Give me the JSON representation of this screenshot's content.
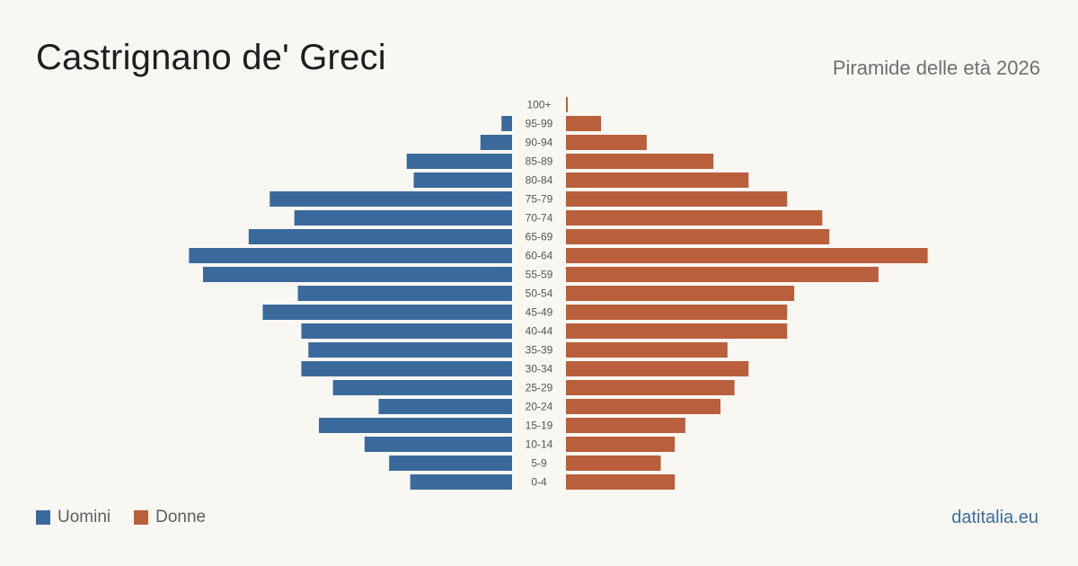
{
  "header": {
    "title": "Castrignano de' Greci",
    "subtitle": "Piramide delle età 2026"
  },
  "legend": {
    "men_label": "Uomini",
    "women_label": "Donne"
  },
  "source": "datitalia.eu",
  "colors": {
    "men": "#3a6a9c",
    "women": "#b95f3c",
    "background": "#f9f7f2"
  },
  "chart_data": {
    "type": "bar",
    "orientation": "horizontal",
    "layout": "population-pyramid",
    "categories": [
      "100+",
      "95-99",
      "90-94",
      "85-89",
      "80-84",
      "75-79",
      "70-74",
      "65-69",
      "60-64",
      "55-59",
      "50-54",
      "45-49",
      "40-44",
      "35-39",
      "30-34",
      "25-29",
      "20-24",
      "15-19",
      "10-14",
      "5-9",
      "0-4"
    ],
    "series": [
      {
        "name": "Uomini",
        "color": "#3a6a9c",
        "values": [
          0,
          3,
          9,
          30,
          28,
          69,
          62,
          75,
          92,
          88,
          61,
          71,
          60,
          58,
          60,
          51,
          38,
          55,
          42,
          35,
          29
        ]
      },
      {
        "name": "Donne",
        "color": "#b95f3c",
        "values": [
          0.5,
          10,
          23,
          42,
          52,
          63,
          73,
          75,
          103,
          89,
          65,
          63,
          63,
          46,
          52,
          48,
          44,
          34,
          31,
          27,
          31
        ]
      }
    ],
    "xlim": [
      0,
      110
    ],
    "grid": false,
    "legend_position": "bottom-left"
  }
}
